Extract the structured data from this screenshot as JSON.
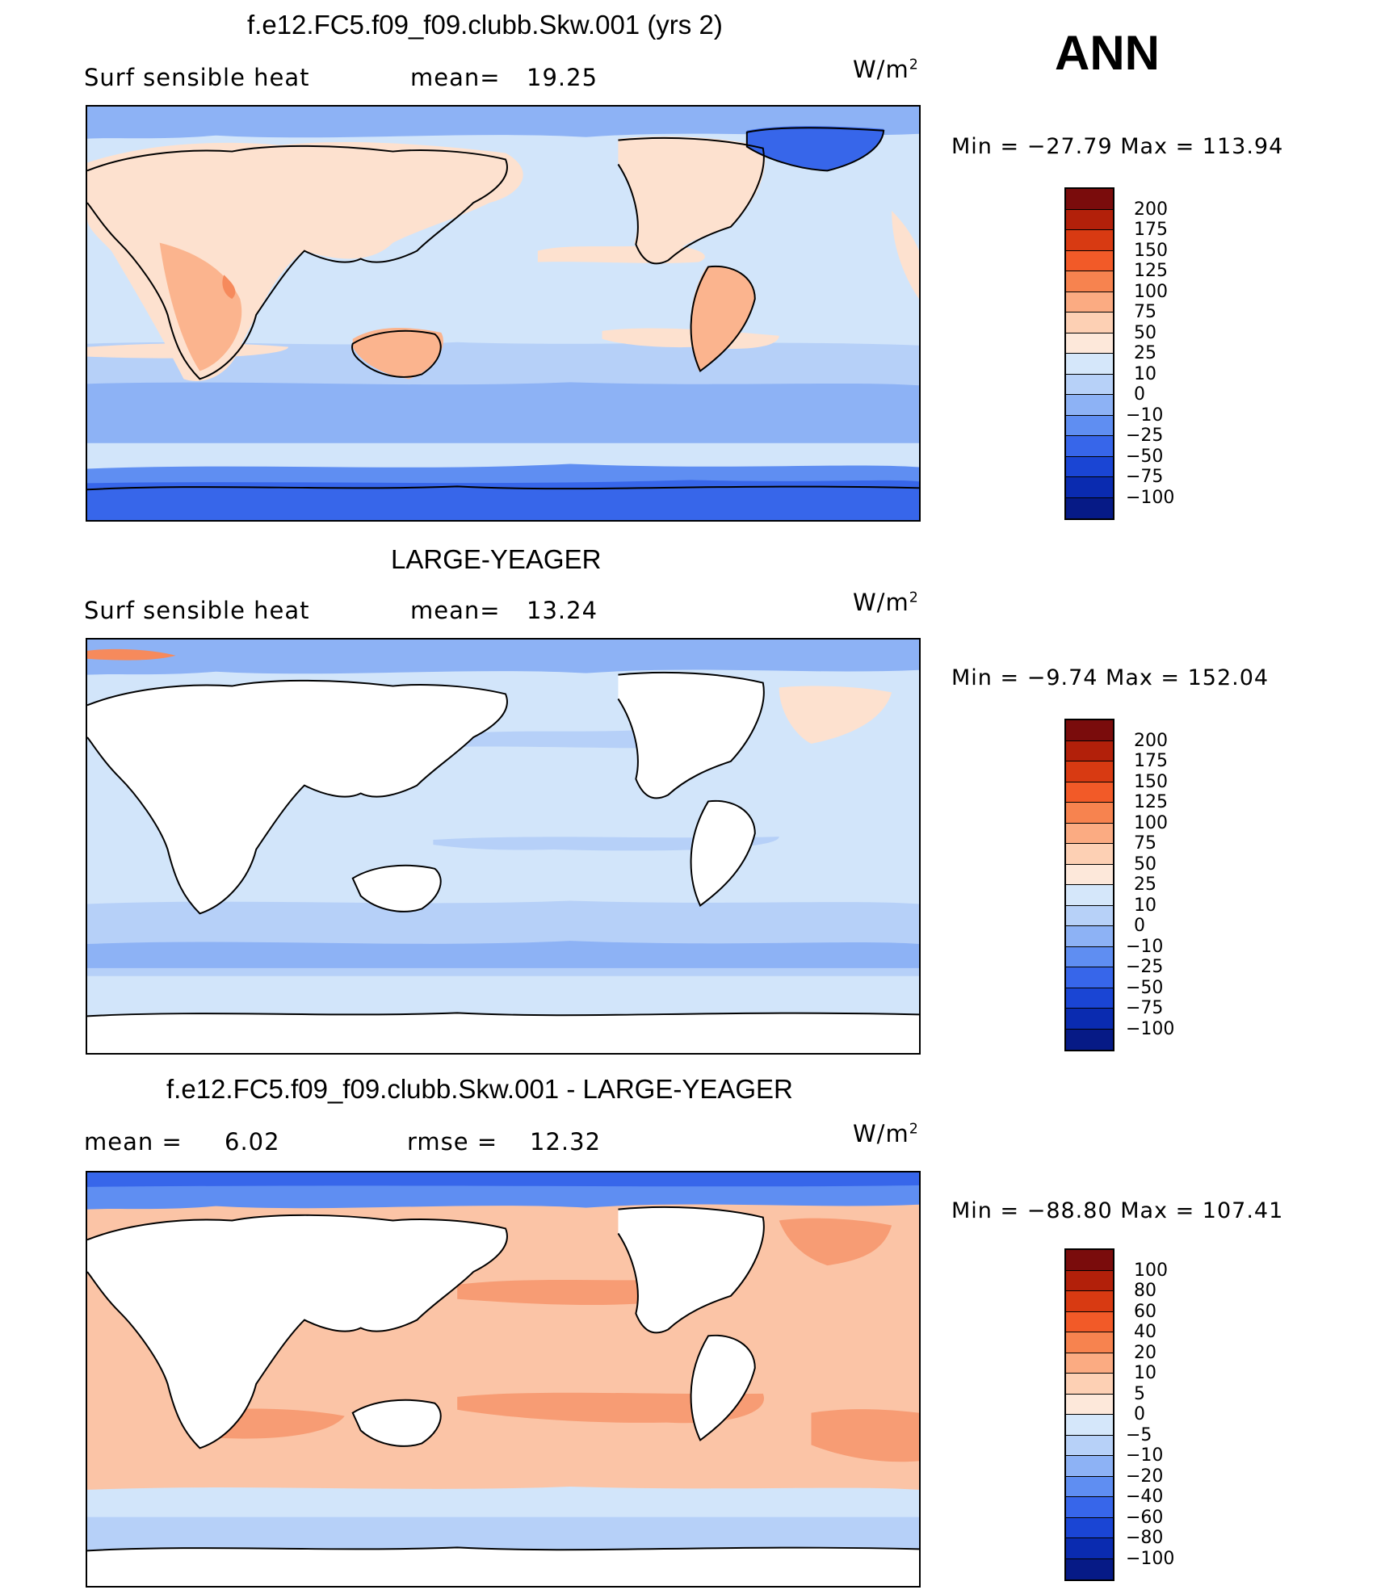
{
  "season": "ANN",
  "units_base": "W/m",
  "units_exp": "2",
  "panels": [
    {
      "title": "f.e12.FC5.f09_f09.clubb.Skw.001 (yrs 2)",
      "left_label": "Surf  sensible  heat",
      "stat_label": "mean=",
      "stat_value": "19.25",
      "minmax": "Min  =  −27.79  Max  =  113.94",
      "colorbar_labels": [
        "200",
        "175",
        "150",
        "125",
        "100",
        "75",
        "50",
        "25",
        "10",
        "0",
        "−10",
        "−25",
        "−50",
        "−75",
        "−100"
      ]
    },
    {
      "title": "LARGE-YEAGER",
      "left_label": "Surf  sensible  heat",
      "stat_label": "mean=",
      "stat_value": "13.24",
      "minmax": "Min  =   −9.74  Max  =  152.04",
      "colorbar_labels": [
        "200",
        "175",
        "150",
        "125",
        "100",
        "75",
        "50",
        "25",
        "10",
        "0",
        "−10",
        "−25",
        "−50",
        "−75",
        "−100"
      ]
    },
    {
      "title": "f.e12.FC5.f09_f09.clubb.Skw.001 - LARGE-YEAGER",
      "left_label": "mean  =",
      "left_value": "6.02",
      "stat_label": "rmse  =",
      "stat_value": "12.32",
      "minmax": "Min  =  −88.80  Max  =  107.41",
      "colorbar_labels": [
        "100",
        "80",
        "60",
        "40",
        "20",
        "10",
        "5",
        "0",
        "−5",
        "−10",
        "−20",
        "−40",
        "−60",
        "−80",
        "−100"
      ]
    }
  ],
  "colorbar_colors": [
    "#7a0c0c",
    "#b2200a",
    "#d83a12",
    "#f25a28",
    "#f7834f",
    "#fbab82",
    "#fdd0b4",
    "#fde8da",
    "#d5e7fa",
    "#b7d1f8",
    "#8db2f5",
    "#5f8ef2",
    "#3766ea",
    "#1a45d4",
    "#0a2bb0",
    "#061a86"
  ],
  "colors": {
    "ocean_light": "#d2e5fa",
    "ocean_mid": "#b6d0f8",
    "ocean_blue": "#8db2f5",
    "ice_blue": "#5f8ef2",
    "deep_blue": "#3766ea",
    "land_warm": "#fde1cf",
    "land_hot": "#fbb48e",
    "hot": "#f68a5c",
    "diff_warm": "#fbc4a6",
    "diff_hot": "#f79c74"
  }
}
